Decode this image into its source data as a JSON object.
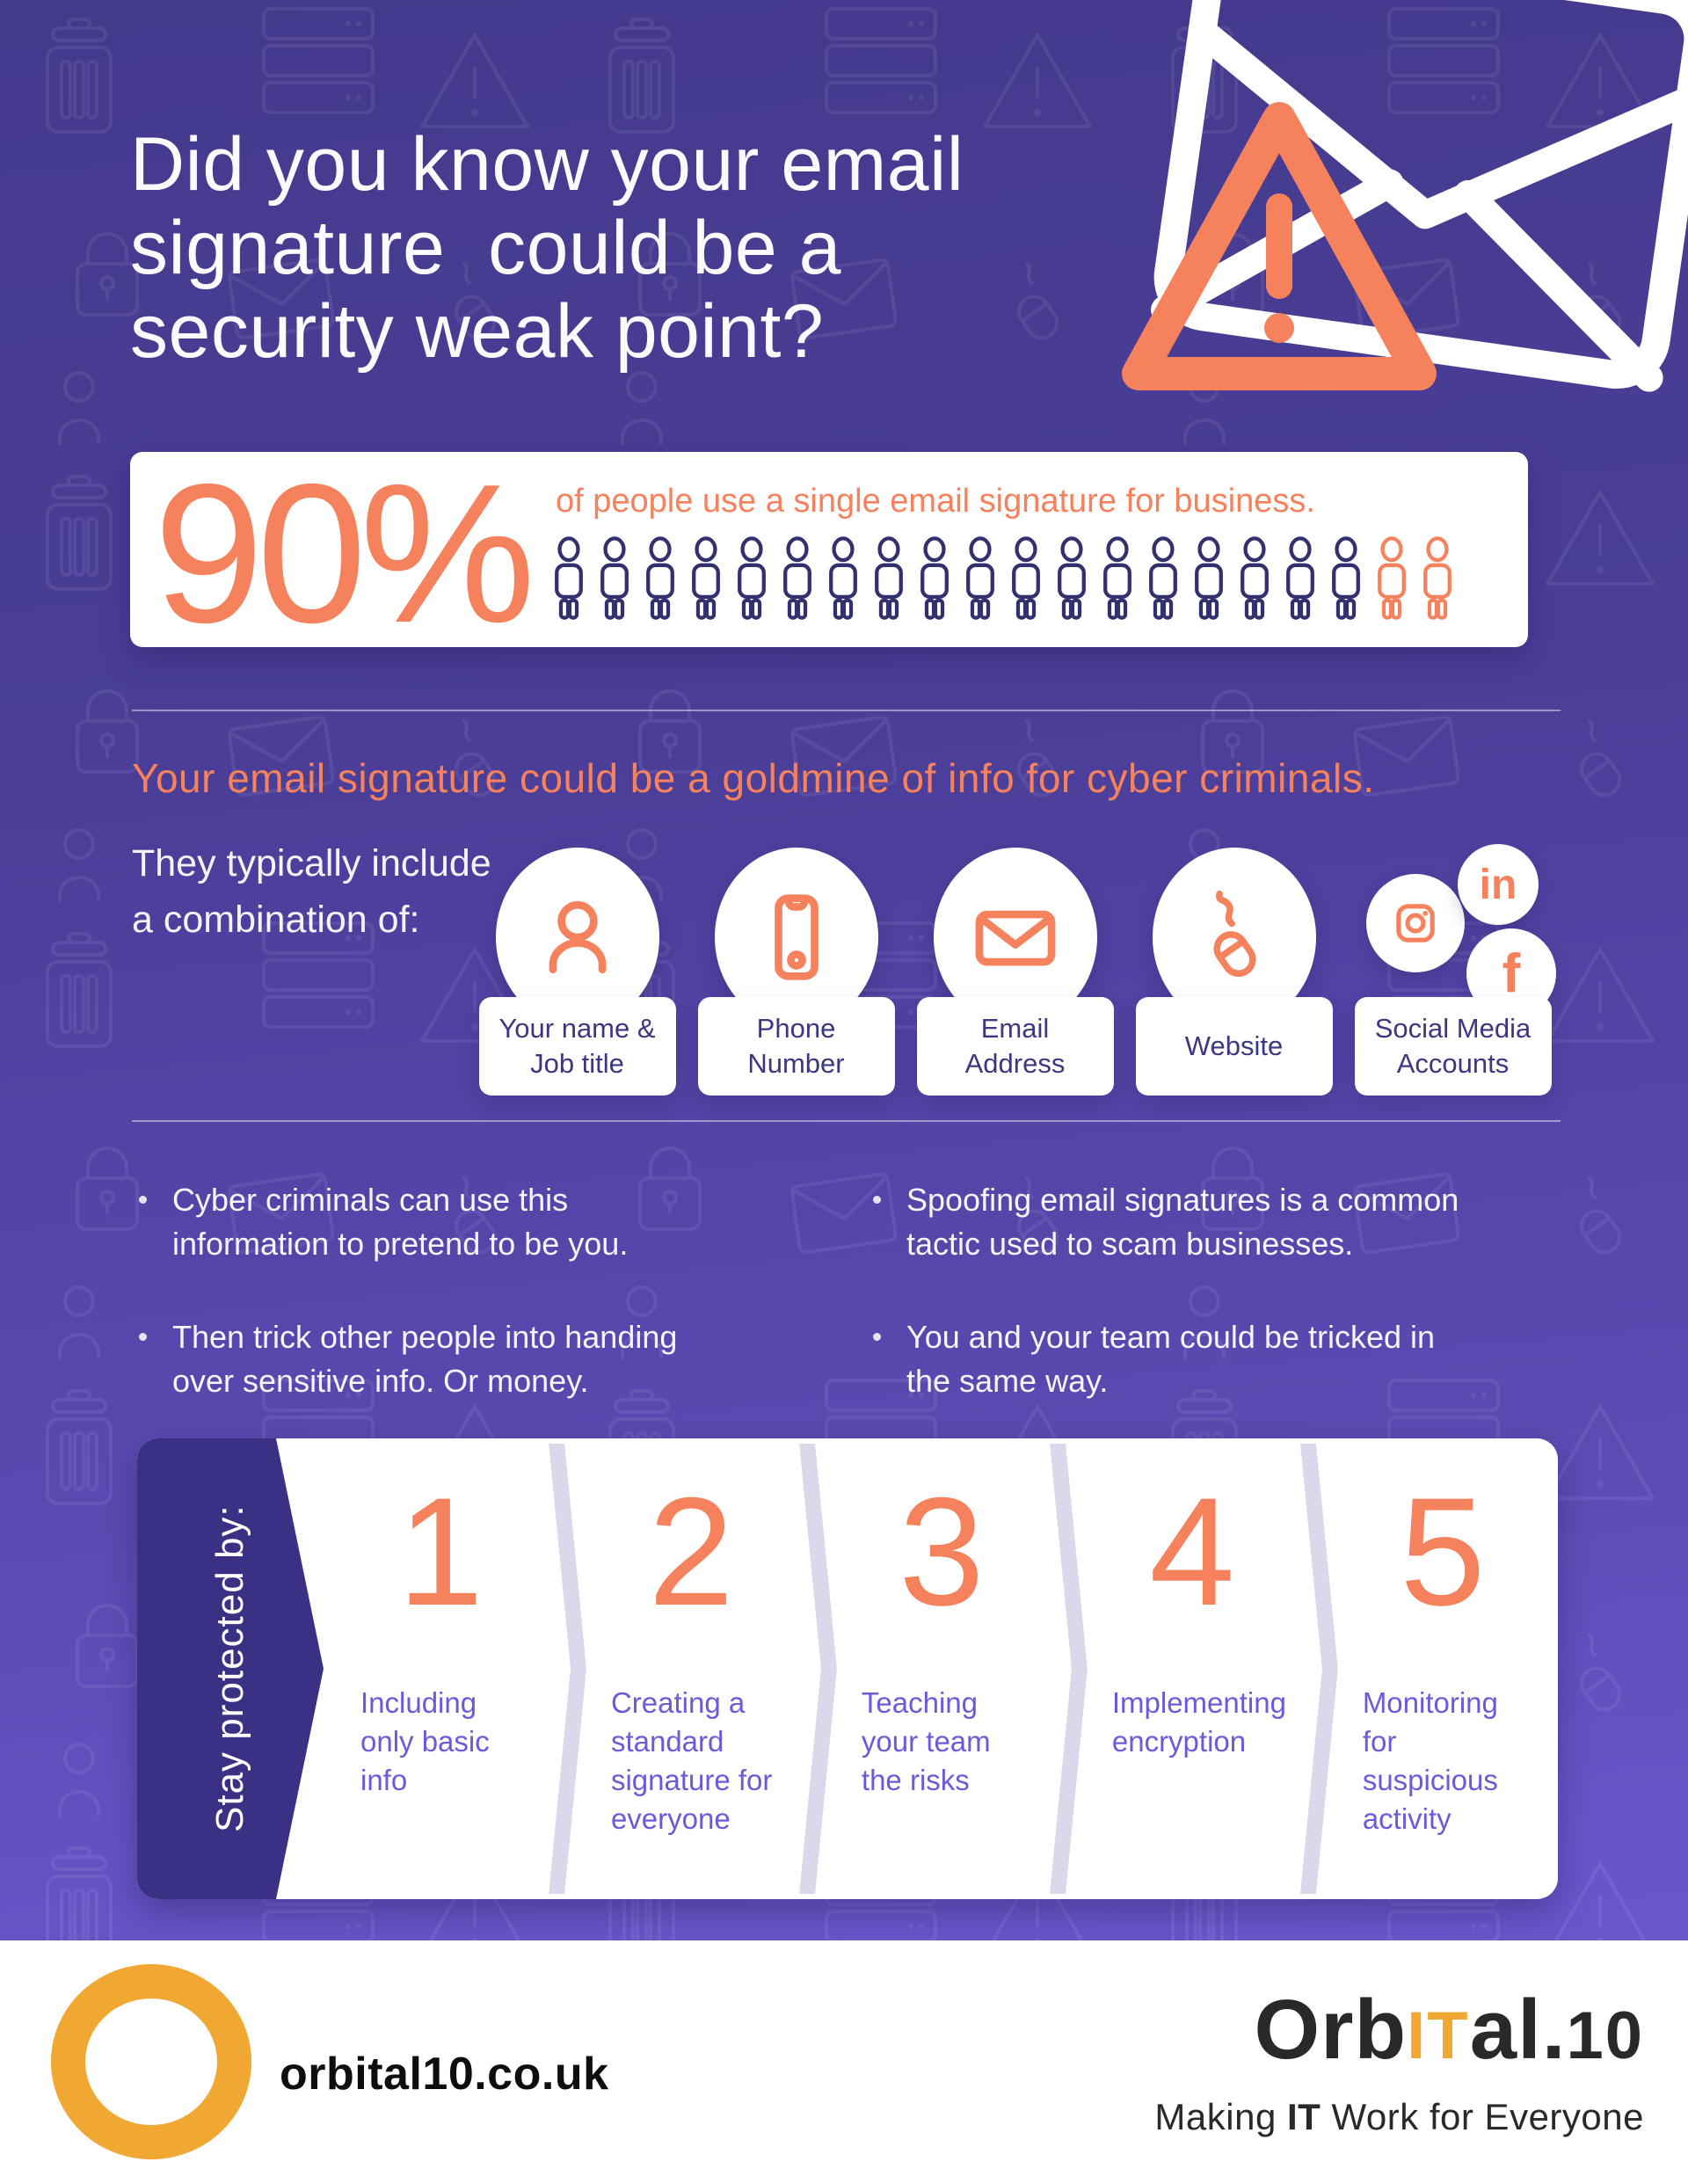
{
  "colors": {
    "accent": "#f5825c",
    "navy": "#32306e",
    "step_text": "#6a5bd8",
    "label_navy": "#3c3781",
    "panel": "#3a3184",
    "amber": "#f0a832",
    "chev": "#dcd8ec",
    "ink": "#2b2829"
  },
  "header": {
    "title_lines": [
      "Did you know your email",
      "signature  could be a",
      "security weak point?"
    ]
  },
  "hero": {
    "icons": [
      "envelope-icon",
      "warning-triangle-icon"
    ]
  },
  "stat_card": {
    "percent": "90%",
    "caption": "of people use a single email signature for business.",
    "people_total": 20,
    "people_highlighted": 2
  },
  "goldmine": {
    "headline": "Your email signature could be a goldmine of info for cyber criminals.",
    "intro": "They typically include a combination of:",
    "items": [
      {
        "icon": "person-icon",
        "label_lines": [
          "Your name &",
          "Job title"
        ]
      },
      {
        "icon": "phone-icon",
        "label_lines": [
          "Phone",
          "Number"
        ]
      },
      {
        "icon": "mail-icon",
        "label_lines": [
          "Email",
          "Address"
        ]
      },
      {
        "icon": "mouse-icon",
        "label_lines": [
          "Website"
        ]
      },
      {
        "icon": "social-icons",
        "label_lines": [
          "Social Media",
          "Accounts"
        ],
        "networks": [
          "instagram-icon",
          "linkedin-icon",
          "facebook-icon"
        ]
      }
    ]
  },
  "risks": {
    "bullets_left": [
      "Cyber criminals can use this information to pretend to be you.",
      "Then trick other people into handing over sensitive info. Or money."
    ],
    "bullets_right": [
      "Spoofing email signatures is a common tactic used to scam businesses.",
      "You and your team could be tricked in the same way."
    ]
  },
  "protection": {
    "side_label": "Stay protected by:",
    "steps": [
      {
        "number": "1",
        "text": "Including only basic info"
      },
      {
        "number": "2",
        "text": "Creating a standard signature for everyone"
      },
      {
        "number": "3",
        "text": "Teaching your team the risks"
      },
      {
        "number": "4",
        "text": "Implementing encryption"
      },
      {
        "number": "5",
        "text": "Monitoring for suspicious activity"
      }
    ]
  },
  "footer": {
    "website": "orbital10.co.uk",
    "brand": {
      "prefix": "Orb",
      "highlight": "IT",
      "suffix_main": "al.",
      "suffix_small": "10"
    },
    "tagline": {
      "pre": "Making ",
      "bold": "IT",
      "post": " Work for Everyone"
    }
  }
}
